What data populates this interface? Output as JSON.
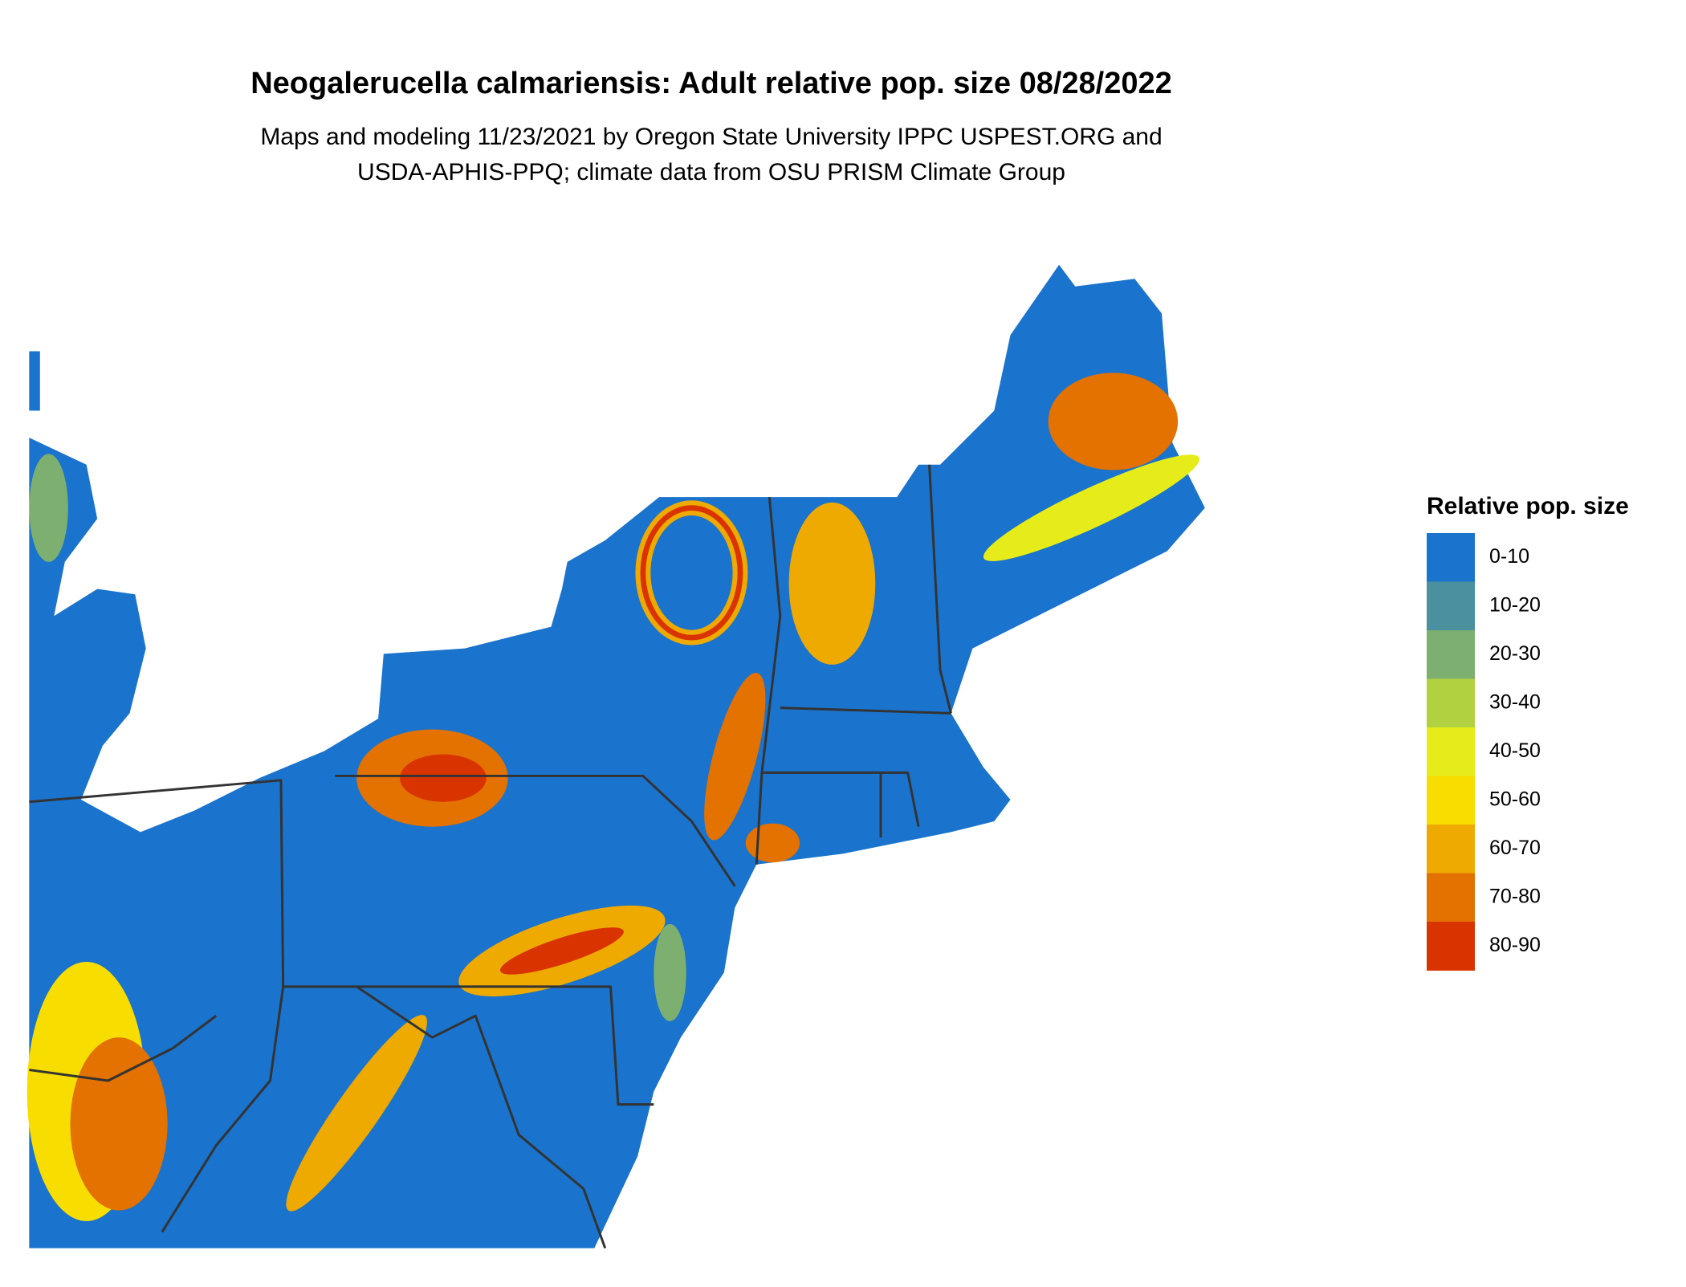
{
  "header": {
    "title": "Neogalerucella calmariensis: Adult relative pop. size 08/28/2022",
    "subtitle_lines": [
      "Maps and modeling 11/23/2021 by Oregon State University IPPC USPEST.ORG and",
      "USDA-APHIS-PPQ; climate data from OSU PRISM Climate Group"
    ]
  },
  "legend": {
    "title": "Relative pop. size",
    "items": [
      {
        "label": "0-10",
        "color": "#1a73cc"
      },
      {
        "label": "10-20",
        "color": "#4a909e"
      },
      {
        "label": "20-30",
        "color": "#7daf70"
      },
      {
        "label": "30-40",
        "color": "#b2d140"
      },
      {
        "label": "40-50",
        "color": "#e5ec1a"
      },
      {
        "label": "50-60",
        "color": "#f7dd00"
      },
      {
        "label": "60-70",
        "color": "#eeaa00"
      },
      {
        "label": "70-80",
        "color": "#e37200"
      },
      {
        "label": "80-90",
        "color": "#d93400"
      }
    ]
  }
}
